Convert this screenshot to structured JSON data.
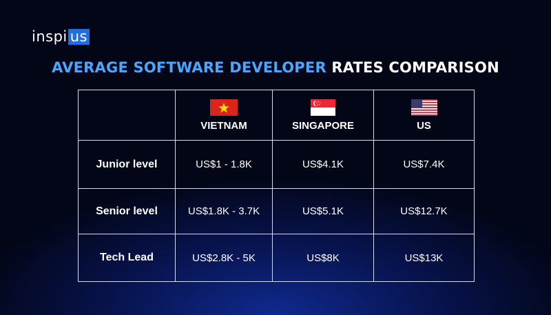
{
  "logo": {
    "prefix": "inspi",
    "box": "us"
  },
  "title": {
    "accent": "AVERAGE SOFTWARE DEVELOPER",
    "rest": "RATES COMPARISON"
  },
  "table": {
    "columns": [
      {
        "label": "VIETNAM",
        "flag": "vietnam-flag-icon"
      },
      {
        "label": "SINGAPORE",
        "flag": "singapore-flag-icon"
      },
      {
        "label": "US",
        "flag": "us-flag-icon"
      }
    ],
    "rows": [
      {
        "label": "Junior level",
        "values": [
          "US$1 - 1.8K",
          "US$4.1K",
          "US$7.4K"
        ]
      },
      {
        "label": "Senior level",
        "values": [
          "US$1.8K - 3.7K",
          "US$5.1K",
          "US$12.7K"
        ]
      },
      {
        "label": "Tech Lead",
        "values": [
          "US$2.8K - 5K",
          "US$8K",
          "US$13K"
        ]
      }
    ]
  },
  "colors": {
    "accent": "#4aa7ff",
    "logo_box": "#1e6fe0",
    "border": "#d8dcec"
  }
}
